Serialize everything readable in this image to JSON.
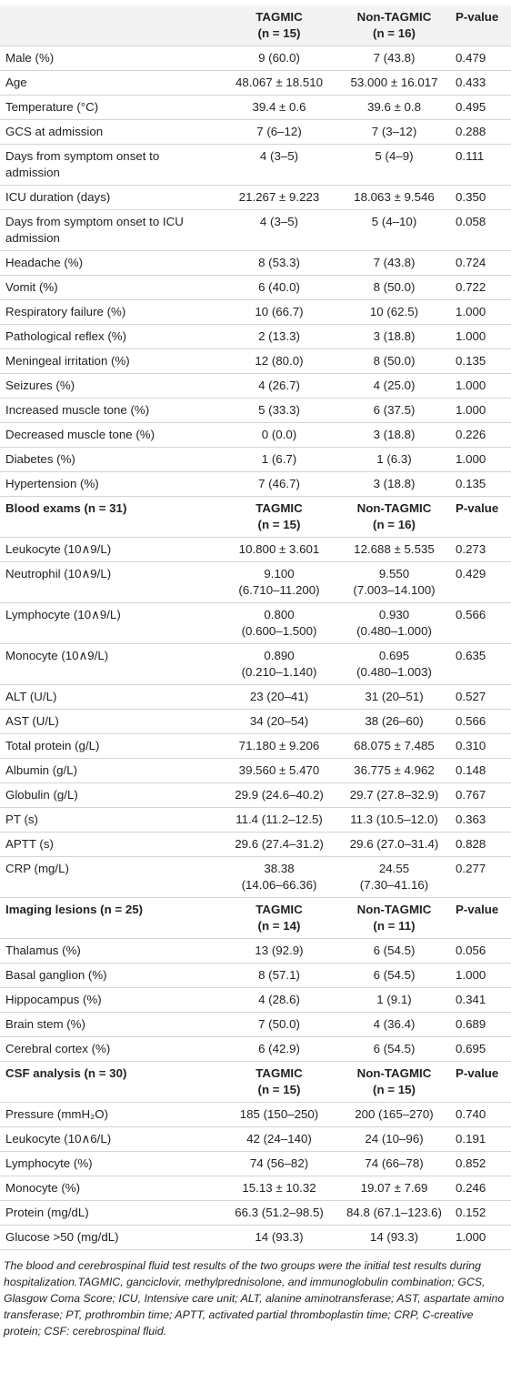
{
  "table": {
    "sections": [
      {
        "columns": [
          {
            "name": "TAGMIC",
            "n": "(n = 15)"
          },
          {
            "name": "Non-TAGMIC",
            "n": "(n = 16)"
          }
        ],
        "p_label": "P-value",
        "rows": [
          [
            "Male (%)",
            "9 (60.0)",
            "7 (43.8)",
            "0.479"
          ],
          [
            "Age",
            "48.067 ± 18.510",
            "53.000 ± 16.017",
            "0.433"
          ],
          [
            "Temperature (°C)",
            "39.4 ± 0.6",
            "39.6 ± 0.8",
            "0.495"
          ],
          [
            "GCS at admission",
            "7 (6–12)",
            "7 (3–12)",
            "0.288"
          ],
          [
            "Days from symptom onset to admission",
            "4 (3–5)",
            "5 (4–9)",
            "0.111"
          ],
          [
            "ICU duration (days)",
            "21.267 ± 9.223",
            "18.063 ± 9.546",
            "0.350"
          ],
          [
            "Days from symptom onset to ICU admission",
            "4 (3–5)",
            "5 (4–10)",
            "0.058"
          ],
          [
            "Headache (%)",
            "8 (53.3)",
            "7 (43.8)",
            "0.724"
          ],
          [
            "Vomit (%)",
            "6 (40.0)",
            "8 (50.0)",
            "0.722"
          ],
          [
            "Respiratory failure (%)",
            "10 (66.7)",
            "10 (62.5)",
            "1.000"
          ],
          [
            "Pathological reflex (%)",
            "2 (13.3)",
            "3 (18.8)",
            "1.000"
          ],
          [
            "Meningeal irritation (%)",
            "12 (80.0)",
            "8 (50.0)",
            "0.135"
          ],
          [
            "Seizures (%)",
            "4 (26.7)",
            "4 (25.0)",
            "1.000"
          ],
          [
            "Increased muscle tone (%)",
            "5 (33.3)",
            "6 (37.5)",
            "1.000"
          ],
          [
            "Decreased muscle tone (%)",
            "0 (0.0)",
            "3 (18.8)",
            "0.226"
          ],
          [
            "Diabetes (%)",
            "1 (6.7)",
            "1 (6.3)",
            "1.000"
          ],
          [
            "Hypertension (%)",
            "7 (46.7)",
            "3 (18.8)",
            "0.135"
          ]
        ]
      },
      {
        "title": "Blood exams (n = 31)",
        "columns": [
          {
            "name": "TAGMIC",
            "n": "(n = 15)"
          },
          {
            "name": "Non-TAGMIC",
            "n": "(n = 16)"
          }
        ],
        "p_label": "P-value",
        "rows": [
          [
            "Leukocyte (10∧9/L)",
            "10.800 ± 3.601",
            "12.688 ± 5.535",
            "0.273"
          ],
          [
            "Neutrophil (10∧9/L)",
            [
              "9.100",
              "(6.710–11.200)"
            ],
            [
              "9.550",
              "(7.003–14.100)"
            ],
            "0.429"
          ],
          [
            "Lymphocyte (10∧9/L)",
            [
              "0.800",
              "(0.600–1.500)"
            ],
            [
              "0.930",
              "(0.480–1.000)"
            ],
            "0.566"
          ],
          [
            "Monocyte (10∧9/L)",
            [
              "0.890",
              "(0.210–1.140)"
            ],
            [
              "0.695",
              "(0.480–1.003)"
            ],
            "0.635"
          ],
          [
            "ALT (U/L)",
            "23 (20–41)",
            "31 (20–51)",
            "0.527"
          ],
          [
            "AST (U/L)",
            "34 (20–54)",
            "38 (26–60)",
            "0.566"
          ],
          [
            "Total protein (g/L)",
            "71.180 ± 9.206",
            "68.075 ± 7.485",
            "0.310"
          ],
          [
            "Albumin (g/L)",
            "39.560 ± 5.470",
            "36.775 ± 4.962",
            "0.148"
          ],
          [
            "Globulin (g/L)",
            "29.9 (24.6–40.2)",
            "29.7 (27.8–32.9)",
            "0.767"
          ],
          [
            "PT (s)",
            "11.4 (11.2–12.5)",
            "11.3 (10.5–12.0)",
            "0.363"
          ],
          [
            "APTT (s)",
            "29.6 (27.4–31.2)",
            "29.6 (27.0–31.4)",
            "0.828"
          ],
          [
            "CRP (mg/L)",
            [
              "38.38",
              "(14.06–66.36)"
            ],
            [
              "24.55",
              "(7.30–41.16)"
            ],
            "0.277"
          ]
        ]
      },
      {
        "title": "Imaging lesions (n = 25)",
        "columns": [
          {
            "name": "TAGMIC",
            "n": "(n = 14)"
          },
          {
            "name": "Non-TAGMIC",
            "n": "(n = 11)"
          }
        ],
        "p_label": "P-value",
        "rows": [
          [
            "Thalamus (%)",
            "13 (92.9)",
            "6 (54.5)",
            "0.056"
          ],
          [
            "Basal ganglion (%)",
            "8 (57.1)",
            "6 (54.5)",
            "1.000"
          ],
          [
            "Hippocampus (%)",
            "4 (28.6)",
            "1 (9.1)",
            "0.341"
          ],
          [
            "Brain stem (%)",
            "7 (50.0)",
            "4 (36.4)",
            "0.689"
          ],
          [
            "Cerebral cortex (%)",
            "6 (42.9)",
            "6 (54.5)",
            "0.695"
          ]
        ]
      },
      {
        "title": "CSF analysis (n = 30)",
        "columns": [
          {
            "name": "TAGMIC",
            "n": "(n = 15)"
          },
          {
            "name": "Non-TAGMIC",
            "n": "(n = 15)"
          }
        ],
        "p_label": "P-value",
        "rows": [
          [
            "Pressure (mmH₂O)",
            "185 (150–250)",
            "200 (165–270)",
            "0.740"
          ],
          [
            "Leukocyte (10∧6/L)",
            "42 (24–140)",
            "24 (10–96)",
            "0.191"
          ],
          [
            "Lymphocyte (%)",
            "74 (56–82)",
            "74 (66–78)",
            "0.852"
          ],
          [
            "Monocyte (%)",
            "15.13 ± 10.32",
            "19.07 ± 7.69",
            "0.246"
          ],
          [
            "Protein (mg/dL)",
            "66.3 (51.2–98.5)",
            "84.8 (67.1–123.6)",
            "0.152"
          ],
          [
            "Glucose >50 (mg/dL)",
            "14 (93.3)",
            "14 (93.3)",
            "1.000"
          ]
        ]
      }
    ]
  },
  "footnote": "The blood and cerebrospinal fluid test results of the two groups were the initial test results during hospitalization.TAGMIC, ganciclovir, methylprednisolone, and immunoglobulin combination; GCS, Glasgow Coma Score; ICU, Intensive care unit; ALT, alanine aminotransferase; AST, aspartate amino transferase; PT, prothrombin time; APTT, activated partial thromboplastin time; CRP, C-creative protein; CSF: cerebrospinal fluid."
}
